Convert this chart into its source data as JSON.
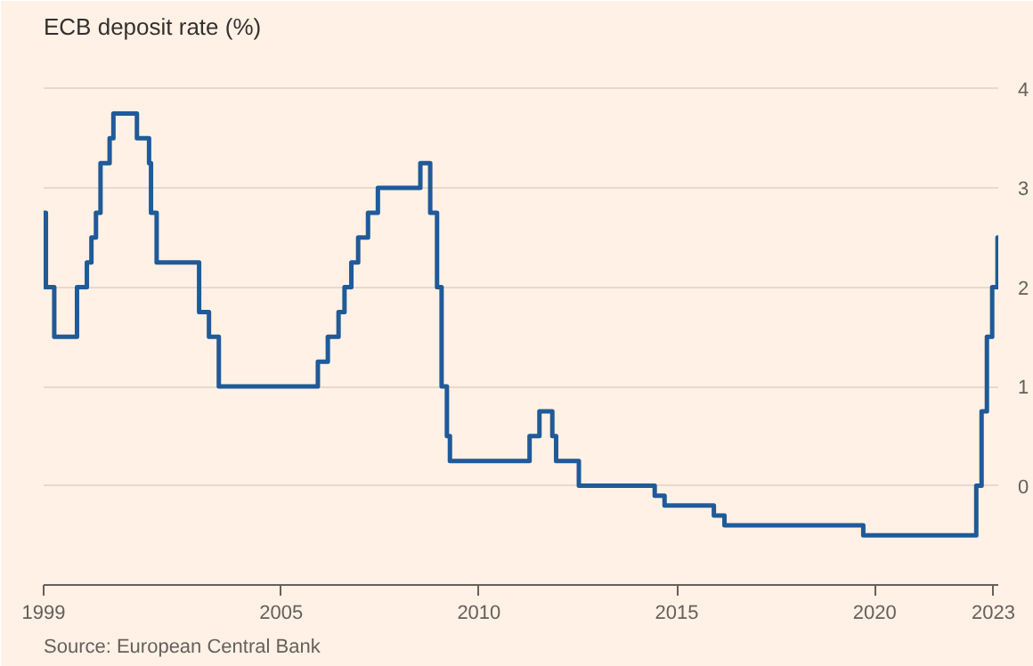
{
  "chart_data": {
    "type": "step",
    "title": "ECB deposit rate (%)",
    "annotations": [
      "Source: European Central Bank"
    ],
    "x": [
      "1999-01-01",
      "1999-01-04",
      "1999-01-22",
      "1999-04-09",
      "1999-11-05",
      "2000-02-04",
      "2000-03-17",
      "2000-04-28",
      "2000-06-09",
      "2000-09-01",
      "2000-10-06",
      "2001-05-11",
      "2001-08-31",
      "2001-09-18",
      "2001-11-09",
      "2002-12-06",
      "2003-03-07",
      "2003-06-06",
      "2005-12-06",
      "2006-03-08",
      "2006-06-15",
      "2006-08-09",
      "2006-10-11",
      "2006-12-13",
      "2007-03-14",
      "2007-06-13",
      "2008-07-09",
      "2008-10-08",
      "2008-11-12",
      "2008-12-10",
      "2009-01-21",
      "2009-03-11",
      "2009-04-08",
      "2011-04-13",
      "2011-07-13",
      "2011-11-09",
      "2011-12-14",
      "2012-07-11",
      "2014-06-11",
      "2014-09-10",
      "2015-12-09",
      "2016-03-16",
      "2019-09-18",
      "2022-07-27",
      "2022-09-14",
      "2022-11-02",
      "2022-12-21",
      "2023-02-08",
      "2023-02-15"
    ],
    "series": [
      {
        "color": "#1f5a99",
        "values": [
          2.0,
          2.75,
          2.0,
          1.5,
          2.0,
          2.25,
          2.5,
          2.75,
          3.25,
          3.5,
          3.75,
          3.5,
          3.25,
          2.75,
          2.25,
          1.75,
          1.5,
          1.0,
          1.25,
          1.5,
          1.75,
          2.0,
          2.25,
          2.5,
          2.75,
          3.0,
          3.25,
          2.75,
          2.75,
          2.0,
          1.0,
          0.5,
          0.25,
          0.5,
          0.75,
          0.5,
          0.25,
          0.0,
          -0.1,
          -0.2,
          -0.3,
          -0.4,
          -0.5,
          0.0,
          0.75,
          1.5,
          2.0,
          2.5,
          2.5
        ]
      }
    ],
    "xlim": [
      "1999-01-01",
      "2023-02-15"
    ],
    "xticks": [
      "1999",
      "2005",
      "2010",
      "2015",
      "2020",
      "2023"
    ],
    "ylim": [
      -1,
      4.4
    ],
    "yticks": [
      0,
      1,
      2,
      3,
      4
    ],
    "grid": "y",
    "marker": "none",
    "line_style": "solid"
  }
}
